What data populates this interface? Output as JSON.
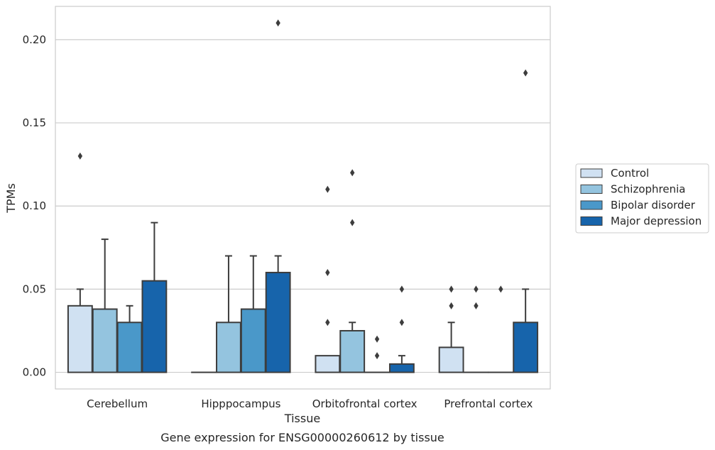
{
  "chart_data": {
    "type": "bar",
    "xlabel": "Tissue",
    "ylabel": "TPMs",
    "caption": "Gene expression for ENSG00000260612 by tissue",
    "ylim": [
      -0.01,
      0.22
    ],
    "yticks": [
      0.0,
      0.05,
      0.1,
      0.15,
      0.2
    ],
    "ytick_labels": [
      "0.00",
      "0.05",
      "0.10",
      "0.15",
      "0.20"
    ],
    "grid": "horizontal",
    "legend_position": "right",
    "categories": [
      "Cerebellum",
      "Hipppocampus",
      "Orbitofrontal cortex",
      "Prefrontal cortex"
    ],
    "series": [
      {
        "name": "Control",
        "color": "#d0e1f2",
        "values": [
          0.04,
          0.0,
          0.01,
          0.015
        ],
        "error_upper": [
          0.05,
          null,
          null,
          0.03
        ],
        "outliers": [
          [
            0.13
          ],
          [],
          [
            0.11,
            0.06,
            0.03
          ],
          [
            0.05,
            0.04
          ]
        ]
      },
      {
        "name": "Schizophrenia",
        "color": "#94c4df",
        "values": [
          0.038,
          0.03,
          0.025,
          0.0
        ],
        "error_upper": [
          0.08,
          0.07,
          0.03,
          null
        ],
        "outliers": [
          [],
          [],
          [
            0.12,
            0.09
          ],
          [
            0.05,
            0.04
          ]
        ]
      },
      {
        "name": "Bipolar disorder",
        "color": "#4a98c9",
        "values": [
          0.03,
          0.038,
          0.0,
          0.0
        ],
        "error_upper": [
          0.04,
          0.07,
          null,
          null
        ],
        "outliers": [
          [],
          [],
          [
            0.02,
            0.01
          ],
          [
            0.05
          ]
        ]
      },
      {
        "name": "Major depression",
        "color": "#1764ab",
        "values": [
          0.055,
          0.06,
          0.005,
          0.03
        ],
        "error_upper": [
          0.09,
          0.07,
          0.01,
          0.05
        ],
        "outliers": [
          [],
          [
            0.21
          ],
          [
            0.05,
            0.03
          ],
          [
            0.18
          ]
        ]
      }
    ]
  }
}
